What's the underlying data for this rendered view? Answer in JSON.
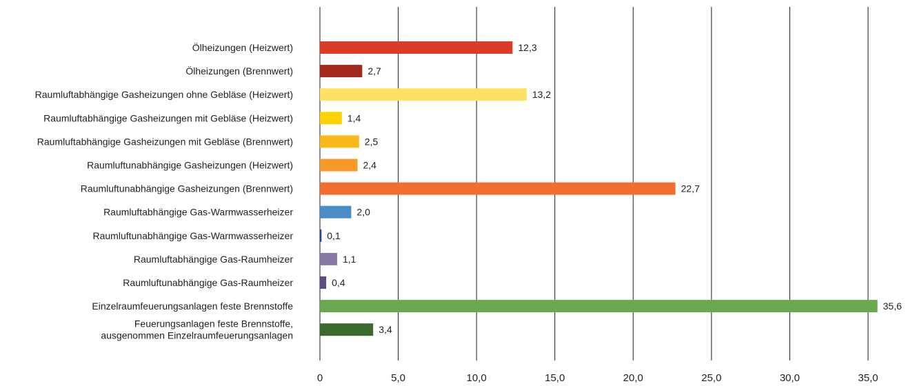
{
  "chart_data": {
    "type": "bar",
    "orientation": "horizontal",
    "title": "",
    "xlabel": "",
    "ylabel": "",
    "xlim": [
      0,
      35
    ],
    "grid": true,
    "legend": "none",
    "ticks": [
      "0",
      "5,0",
      "10,0",
      "15,0",
      "20,0",
      "25,0",
      "30,0",
      "35,0"
    ],
    "tick_values": [
      0,
      5,
      10,
      15,
      20,
      25,
      30,
      35
    ],
    "bars": [
      {
        "label": [
          "Ölheizungen (Heizwert)"
        ],
        "value": 12.3,
        "value_label": "12,3",
        "color": "#de3a2a"
      },
      {
        "label": [
          "Ölheizungen (Brennwert)"
        ],
        "value": 2.7,
        "value_label": "2,7",
        "color": "#a3271b"
      },
      {
        "label": [
          "Raumluftabhängige Gasheizungen ohne Gebläse (Heizwert)"
        ],
        "value": 13.2,
        "value_label": "13,2",
        "color": "#fde163"
      },
      {
        "label": [
          "Raumluftabhängige Gasheizungen mit Gebläse (Heizwert)"
        ],
        "value": 1.4,
        "value_label": "1,4",
        "color": "#fcd200"
      },
      {
        "label": [
          "Raumluftabhängige Gasheizungen mit Gebläse (Brennwert)"
        ],
        "value": 2.5,
        "value_label": "2,5",
        "color": "#f9b91a"
      },
      {
        "label": [
          "Raumluftunabhängige Gasheizungen  (Heizwert)"
        ],
        "value": 2.4,
        "value_label": "2,4",
        "color": "#f7982a"
      },
      {
        "label": [
          "Raumluftunabhängige Gasheizungen  (Brennwert)"
        ],
        "value": 22.7,
        "value_label": "22,7",
        "color": "#f06f2f"
      },
      {
        "label": [
          "Raumluftabhängige Gas-Warmwasserheizer"
        ],
        "value": 2.0,
        "value_label": "2,0",
        "color": "#4a8cc6"
      },
      {
        "label": [
          "Raumluftunabhängige Gas-Warmwasserheizer"
        ],
        "value": 0.1,
        "value_label": "0,1",
        "color": "#1f4b86"
      },
      {
        "label": [
          "Raumluftabhängige Gas-Raumheizer"
        ],
        "value": 1.1,
        "value_label": "1,1",
        "color": "#8a77a8"
      },
      {
        "label": [
          "Raumluftunabhängige Gas-Raumheizer"
        ],
        "value": 0.4,
        "value_label": "0,4",
        "color": "#5f4a82"
      },
      {
        "label": [
          "Einzelraumfeuerungsanlagen feste Brennstoffe"
        ],
        "value": 35.6,
        "value_label": "35,6",
        "color": "#6aa84f"
      },
      {
        "label": [
          "Feuerungsanlagen feste Brennstoffe,",
          "ausgenommen Einzelraumfeuerungsanlagen"
        ],
        "value": 3.4,
        "value_label": "3,4",
        "color": "#3b6b2c"
      }
    ]
  }
}
